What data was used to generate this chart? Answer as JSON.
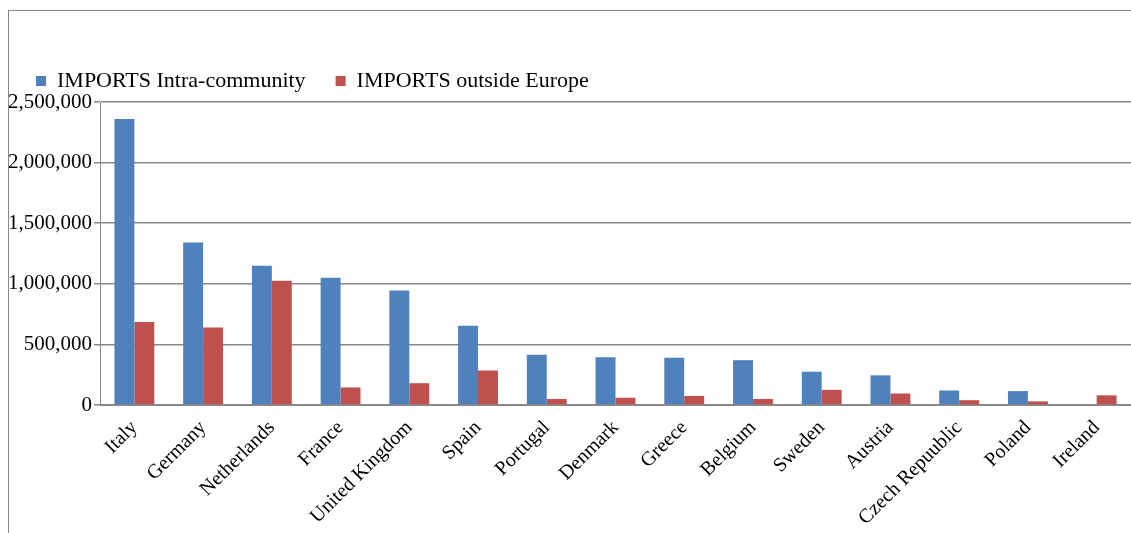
{
  "chart_data": {
    "type": "bar",
    "categories": [
      "Italy",
      "Germany",
      "Netherlands",
      "France",
      "United Kingdom",
      "Spain",
      "Portugal",
      "Denmark",
      "Greece",
      "Belgium",
      "Sweden",
      "Austria",
      "Czech Repuublic",
      "Poland",
      "Ireland"
    ],
    "series": [
      {
        "name": "IMPORTS Intra-community",
        "color": "#4f81bd",
        "values": [
          2360000,
          1340000,
          1150000,
          1050000,
          945000,
          655000,
          415000,
          395000,
          390000,
          370000,
          275000,
          245000,
          120000,
          115000,
          null
        ]
      },
      {
        "name": "IMPORTS outside Europe",
        "color": "#c0504d",
        "values": [
          685000,
          640000,
          1025000,
          145000,
          180000,
          285000,
          50000,
          60000,
          75000,
          50000,
          125000,
          95000,
          40000,
          30000,
          80000
        ]
      }
    ],
    "ylim": [
      0,
      2500000
    ],
    "yticks": [
      {
        "value": 0,
        "label": "0"
      },
      {
        "value": 500000,
        "label": "500,000"
      },
      {
        "value": 1000000,
        "label": "1,000,000"
      },
      {
        "value": 1500000,
        "label": "1,500,000"
      },
      {
        "value": 2000000,
        "label": "2,000,000"
      },
      {
        "value": 2500000,
        "label": "2,500,000"
      }
    ],
    "grid": "y",
    "legend": "top"
  }
}
